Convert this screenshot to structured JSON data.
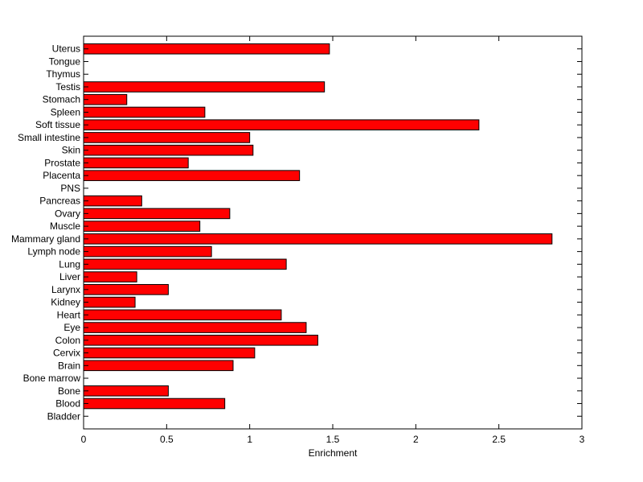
{
  "chart_data": {
    "type": "bar",
    "orientation": "horizontal",
    "categories": [
      "Uterus",
      "Tongue",
      "Thymus",
      "Testis",
      "Stomach",
      "Spleen",
      "Soft tissue",
      "Small intestine",
      "Skin",
      "Prostate",
      "Placenta",
      "PNS",
      "Pancreas",
      "Ovary",
      "Muscle",
      "Mammary gland",
      "Lymph node",
      "Lung",
      "Liver",
      "Larynx",
      "Kidney",
      "Heart",
      "Eye",
      "Colon",
      "Cervix",
      "Brain",
      "Bone marrow",
      "Bone",
      "Blood",
      "Bladder"
    ],
    "values": [
      1.48,
      0,
      0,
      1.45,
      0.26,
      0.73,
      2.38,
      1.0,
      1.02,
      0.63,
      1.3,
      0,
      0.35,
      0.88,
      0.7,
      2.82,
      0.77,
      1.22,
      0.32,
      0.51,
      0.31,
      1.19,
      1.34,
      1.41,
      1.03,
      0.9,
      0,
      0.51,
      0.85,
      0
    ],
    "bar_color": "#ff0000",
    "xlabel": "Enrichment",
    "ylabel": "",
    "title": "",
    "xlim": [
      0,
      3
    ],
    "xticks": [
      "0",
      "0.5",
      "1",
      "1.5",
      "2",
      "2.5",
      "3"
    ],
    "grid": false
  }
}
